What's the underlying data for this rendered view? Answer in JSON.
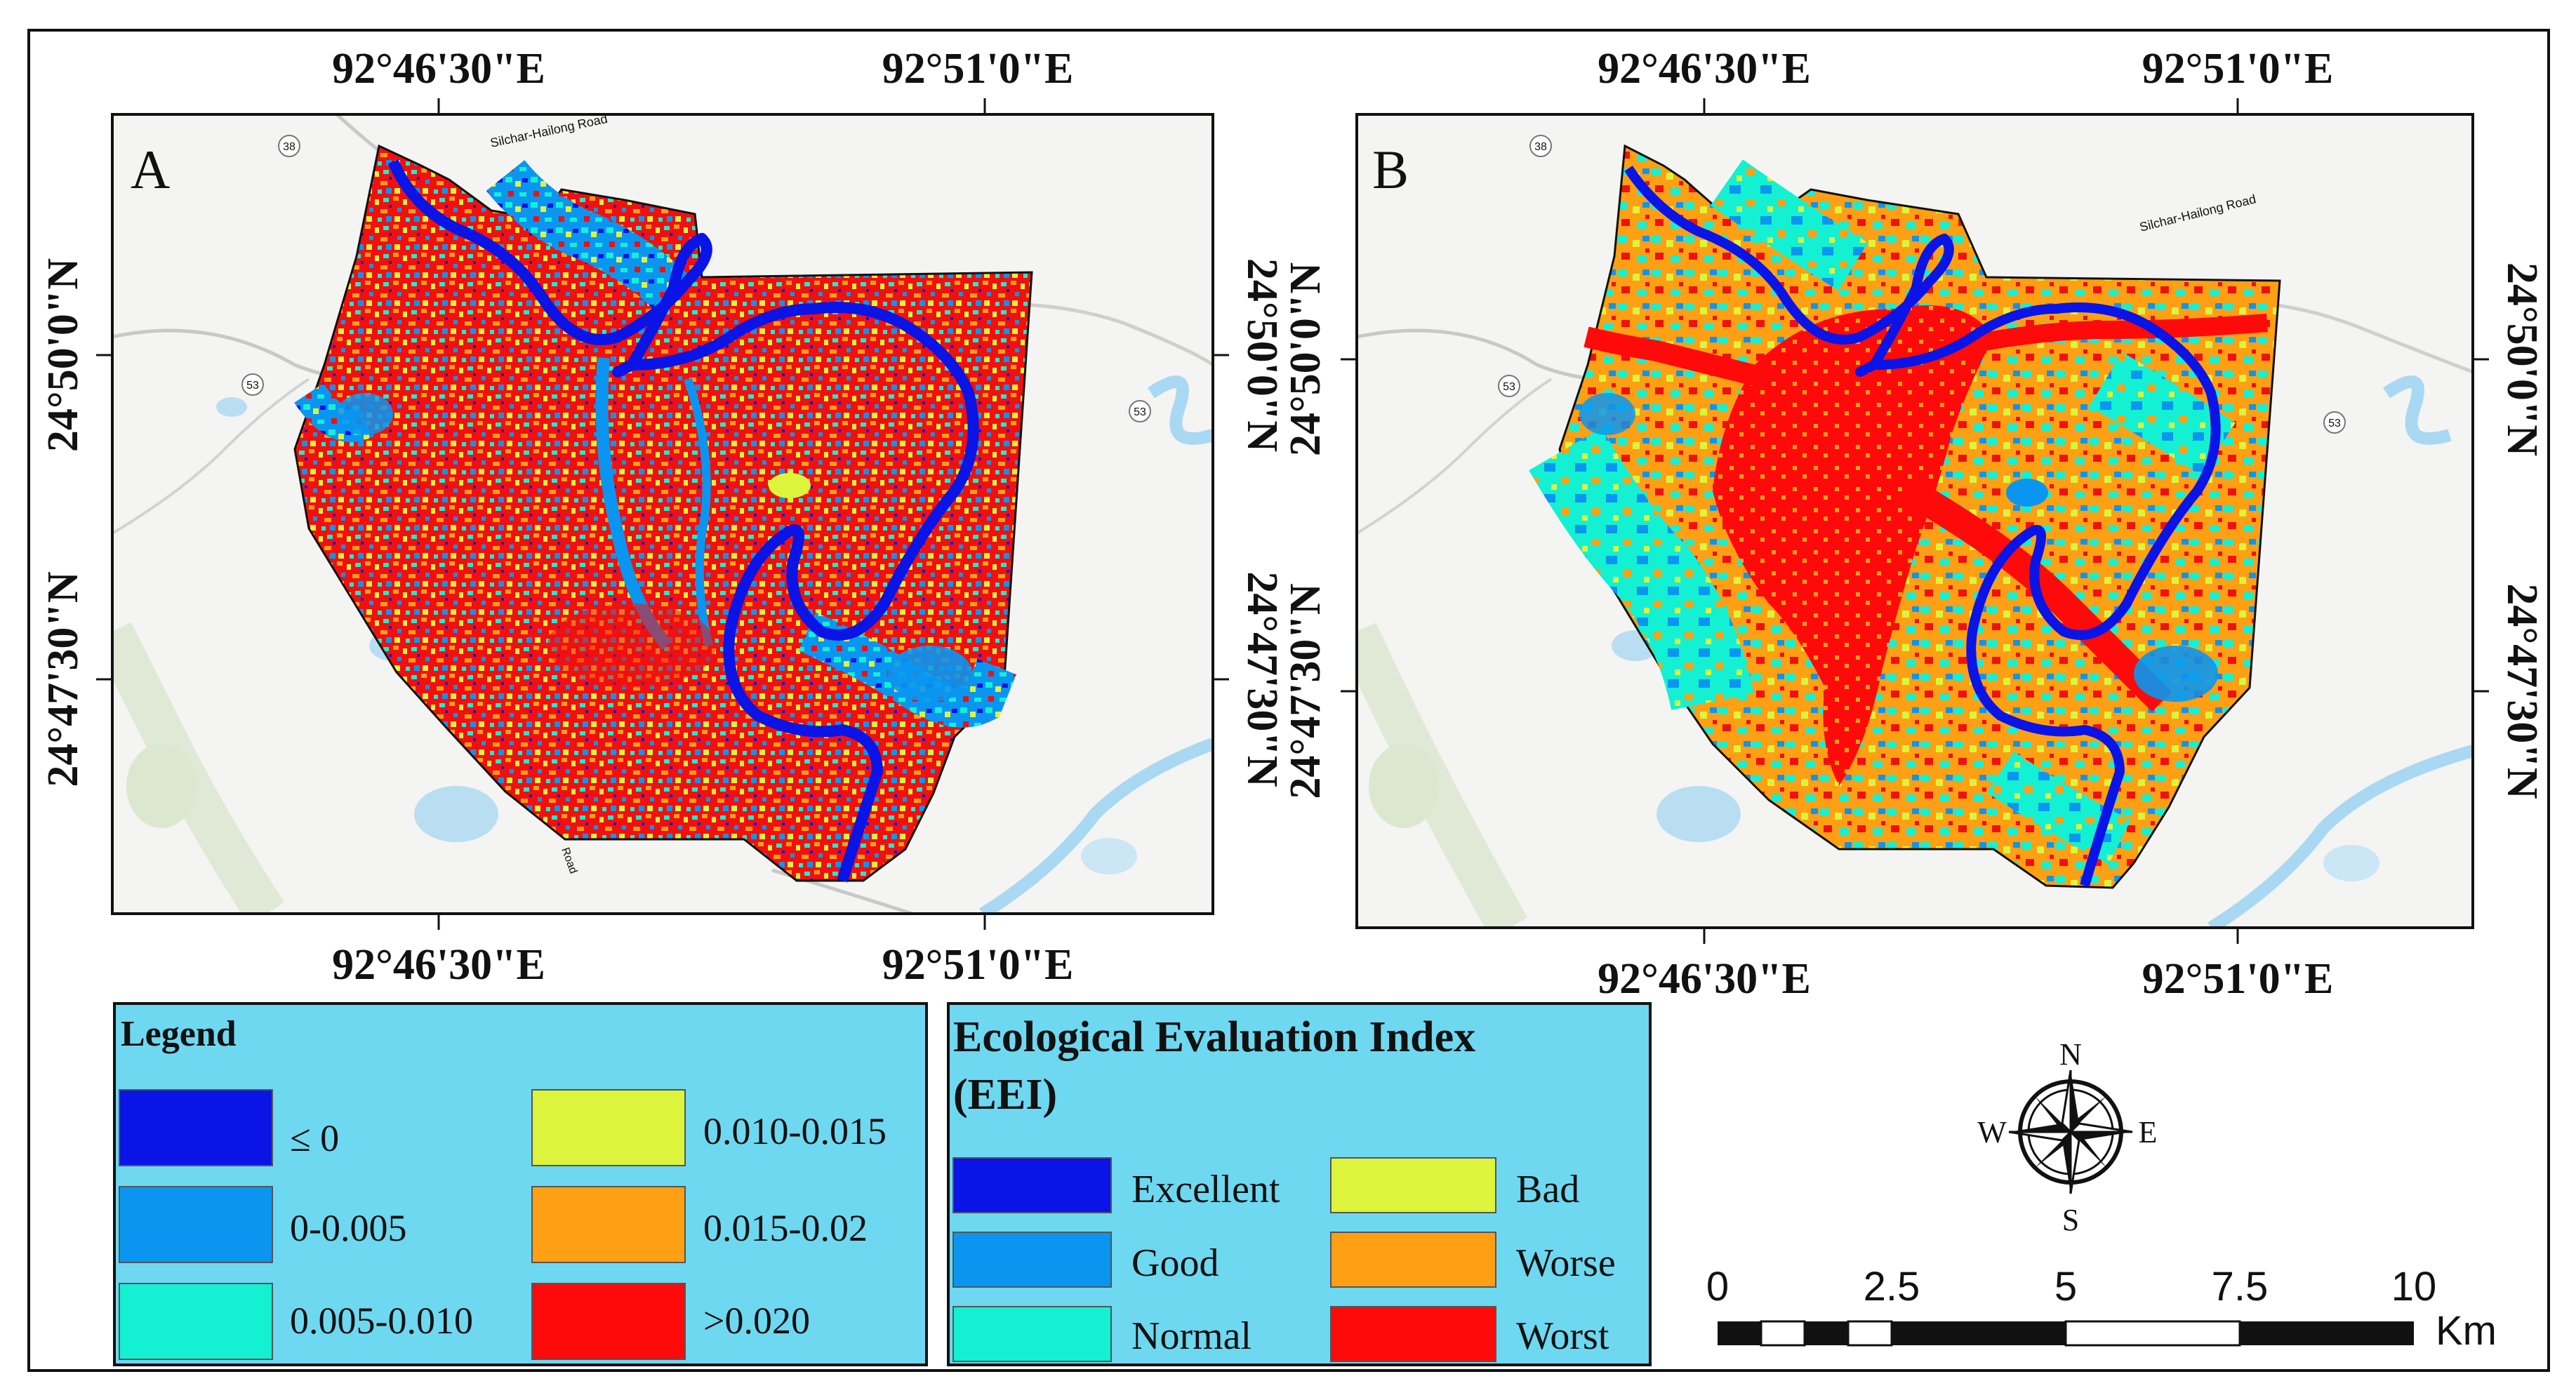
{
  "panels": [
    {
      "letter": "A",
      "top_labels": [
        "92°46'30\"E",
        "92°51'0\"E"
      ],
      "bottom_labels": [
        "92°46'30\"E",
        "92°51'0\"E"
      ],
      "left_labels": [
        "24°50'0\"N",
        "24°47'30\"N"
      ],
      "right_labels": [
        "24°50'0\"N",
        "24°47'30\"N"
      ]
    },
    {
      "letter": "B",
      "top_labels": [
        "92°46'30\"E",
        "92°51'0\"E"
      ],
      "bottom_labels": [
        "92°46'30\"E",
        "92°51'0\"E"
      ],
      "left_labels": [
        "24°50'0\"N",
        "24°47'30\"N"
      ],
      "right_labels": [
        "24°50'0\"N",
        "24°47'30\"N"
      ]
    }
  ],
  "basemap": {
    "road_labels": [
      "Silchar-Hailong Road",
      "Road"
    ],
    "route_shields": [
      "38",
      "53",
      "53"
    ]
  },
  "legend_a": {
    "title": "Legend",
    "items": [
      {
        "label": "≤ 0",
        "color": "#0a14e6"
      },
      {
        "label": "0-0.005",
        "color": "#0a96f0"
      },
      {
        "label": "0.005-0.010",
        "color": "#14f0d2"
      },
      {
        "label": "0.010-0.015",
        "color": "#dcf53c"
      },
      {
        "label": "0.015-0.02",
        "color": "#ffa014"
      },
      {
        "label": ">0.020",
        "color": "#ff0a0a"
      }
    ]
  },
  "legend_b": {
    "title_line1": "Ecological Evaluation Index",
    "title_line2": "(EEI)",
    "items": [
      {
        "label": "Excellent",
        "color": "#0a14e6"
      },
      {
        "label": "Good",
        "color": "#0a96f0"
      },
      {
        "label": "Normal",
        "color": "#14f0d2"
      },
      {
        "label": "Bad",
        "color": "#dcf53c"
      },
      {
        "label": "Worse",
        "color": "#ffa014"
      },
      {
        "label": "Worst",
        "color": "#ff0a0a"
      }
    ]
  },
  "compass": {
    "n": "N",
    "s": "S",
    "e": "E",
    "w": "W"
  },
  "scalebar": {
    "ticks": [
      "0",
      "2.5",
      "5",
      "7.5",
      "10"
    ],
    "unit": "Km"
  }
}
